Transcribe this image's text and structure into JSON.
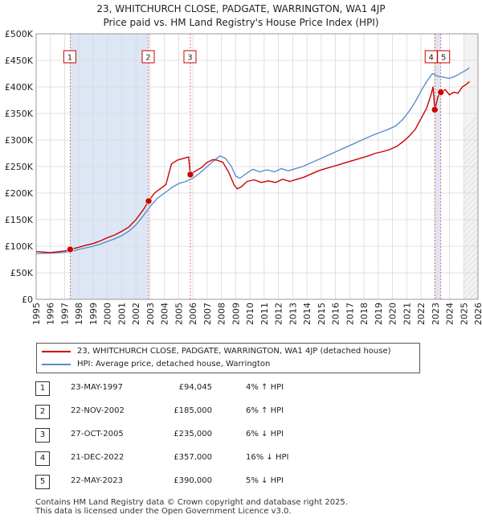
{
  "title_line1": "23, WHITCHURCH CLOSE, PADGATE, WARRINGTON, WA1 4JP",
  "title_line2": "Price paid vs. HM Land Registry's House Price Index (HPI)",
  "chart_data": {
    "type": "line",
    "title": "23, WHITCHURCH CLOSE, PADGATE, WARRINGTON, WA1 4JP — Price paid vs. HM Land Registry's House Price Index (HPI)",
    "xlabel": "",
    "ylabel": "",
    "xlim": [
      1995,
      2026
    ],
    "ylim": [
      0,
      500000
    ],
    "y_ticks": [
      0,
      50000,
      100000,
      150000,
      200000,
      250000,
      300000,
      350000,
      400000,
      450000,
      500000
    ],
    "y_tick_labels": [
      "£0",
      "£50K",
      "£100K",
      "£150K",
      "£200K",
      "£250K",
      "£300K",
      "£350K",
      "£400K",
      "£450K",
      "£500K"
    ],
    "x_ticks": [
      1995,
      1996,
      1997,
      1998,
      1999,
      2000,
      2001,
      2002,
      2003,
      2004,
      2005,
      2006,
      2007,
      2008,
      2009,
      2010,
      2011,
      2012,
      2013,
      2014,
      2015,
      2016,
      2017,
      2018,
      2019,
      2020,
      2021,
      2022,
      2023,
      2024,
      2025,
      2026
    ],
    "x_tick_labels": [
      "1995",
      "1996",
      "1997",
      "1998",
      "1999",
      "2000",
      "2001",
      "2002",
      "2003",
      "2004",
      "2005",
      "2006",
      "2007",
      "2008",
      "2009",
      "2010",
      "2011",
      "2012",
      "2013",
      "2014",
      "2015",
      "2016",
      "2017",
      "2018",
      "2019",
      "2020",
      "2021",
      "2022",
      "2023",
      "2024",
      "2025",
      "2026"
    ],
    "grid": true,
    "legend_position": "below",
    "highlight_periods": [
      [
        1997.39,
        2002.89
      ],
      [
        2022.97,
        2023.39
      ]
    ],
    "future_region_start": 2025.0,
    "series": [
      {
        "name": "23, WHITCHURCH CLOSE, PADGATE, WARRINGTON, WA1 4JP (detached house)",
        "color": "#cc0000",
        "x": [
          1995.0,
          1995.5,
          1996.0,
          1996.5,
          1997.0,
          1997.39,
          1998.0,
          1998.5,
          1999.0,
          1999.5,
          2000.0,
          2000.5,
          2001.0,
          2001.5,
          2002.0,
          2002.5,
          2002.89,
          2003.3,
          2003.7,
          2004.1,
          2004.5,
          2004.9,
          2005.3,
          2005.7,
          2005.82,
          2006.2,
          2006.6,
          2007.0,
          2007.4,
          2007.7,
          2008.1,
          2008.5,
          2008.9,
          2009.1,
          2009.4,
          2009.8,
          2010.3,
          2010.8,
          2011.3,
          2011.8,
          2012.3,
          2012.8,
          2013.3,
          2013.8,
          2014.3,
          2014.8,
          2015.3,
          2015.8,
          2016.3,
          2016.8,
          2017.3,
          2017.8,
          2018.3,
          2018.8,
          2019.3,
          2019.8,
          2020.3,
          2020.8,
          2021.2,
          2021.6,
          2022.0,
          2022.4,
          2022.7,
          2022.85,
          2022.97,
          2023.2,
          2023.39,
          2023.7,
          2024.0,
          2024.3,
          2024.6,
          2024.9,
          2025.2,
          2025.4
        ],
        "values": [
          90000,
          89000,
          88000,
          89500,
          91000,
          94045,
          98000,
          102000,
          105000,
          110000,
          116000,
          121000,
          128000,
          136000,
          150000,
          168000,
          185000,
          200000,
          208000,
          216000,
          255000,
          262000,
          265000,
          268000,
          235000,
          242000,
          248000,
          258000,
          263000,
          262000,
          258000,
          240000,
          215000,
          208000,
          212000,
          222000,
          225000,
          220000,
          223000,
          220000,
          226000,
          222000,
          226000,
          230000,
          236000,
          242000,
          246000,
          250000,
          254000,
          258000,
          262000,
          266000,
          270000,
          275000,
          278000,
          282000,
          288000,
          298000,
          308000,
          320000,
          340000,
          360000,
          385000,
          400000,
          357000,
          382000,
          390000,
          395000,
          385000,
          390000,
          388000,
          400000,
          405000,
          410000
        ]
      },
      {
        "name": "HPI: Average price, detached house, Warrington",
        "color": "#5b8fc9",
        "x": [
          1995.0,
          1995.5,
          1996.0,
          1996.5,
          1997.0,
          1997.5,
          1998.0,
          1998.5,
          1999.0,
          1999.5,
          2000.0,
          2000.5,
          2001.0,
          2001.5,
          2002.0,
          2002.5,
          2003.0,
          2003.5,
          2004.0,
          2004.5,
          2005.0,
          2005.5,
          2006.0,
          2006.5,
          2007.0,
          2007.5,
          2007.9,
          2008.3,
          2008.7,
          2009.0,
          2009.3,
          2009.7,
          2010.2,
          2010.7,
          2011.2,
          2011.7,
          2012.2,
          2012.7,
          2013.2,
          2013.7,
          2014.2,
          2014.7,
          2015.2,
          2015.7,
          2016.2,
          2016.7,
          2017.2,
          2017.7,
          2018.2,
          2018.7,
          2019.2,
          2019.7,
          2020.2,
          2020.7,
          2021.2,
          2021.6,
          2022.0,
          2022.4,
          2022.8,
          2023.2,
          2023.6,
          2024.0,
          2024.4,
          2024.8,
          2025.2,
          2025.4
        ],
        "values": [
          86000,
          86500,
          87000,
          87500,
          88500,
          90500,
          94000,
          97000,
          100000,
          104000,
          109000,
          114000,
          120000,
          128000,
          140000,
          157000,
          175000,
          190000,
          200000,
          210000,
          218000,
          222000,
          228000,
          238000,
          250000,
          262000,
          270000,
          265000,
          250000,
          232000,
          228000,
          236000,
          245000,
          240000,
          244000,
          240000,
          246000,
          242000,
          246000,
          250000,
          256000,
          262000,
          268000,
          274000,
          280000,
          286000,
          292000,
          298000,
          304000,
          310000,
          315000,
          320000,
          326000,
          338000,
          355000,
          372000,
          392000,
          410000,
          425000,
          420000,
          418000,
          416000,
          420000,
          426000,
          432000,
          436000
        ]
      }
    ],
    "sales": [
      {
        "num": 1,
        "x": 1997.39,
        "value": 94045
      },
      {
        "num": 2,
        "x": 2002.89,
        "value": 185000
      },
      {
        "num": 3,
        "x": 2005.82,
        "value": 235000
      },
      {
        "num": 4,
        "x": 2022.97,
        "value": 357000
      },
      {
        "num": 5,
        "x": 2023.39,
        "value": 390000
      }
    ]
  },
  "legend": {
    "property_label": "23, WHITCHURCH CLOSE, PADGATE, WARRINGTON, WA1 4JP (detached house)",
    "hpi_label": "HPI: Average price, detached house, Warrington"
  },
  "transactions": [
    {
      "num": "1",
      "date": "23-MAY-1997",
      "price": "£94,045",
      "hpi": "4% ↑ HPI"
    },
    {
      "num": "2",
      "date": "22-NOV-2002",
      "price": "£185,000",
      "hpi": "6% ↑ HPI"
    },
    {
      "num": "3",
      "date": "27-OCT-2005",
      "price": "£235,000",
      "hpi": "6% ↓ HPI"
    },
    {
      "num": "4",
      "date": "21-DEC-2022",
      "price": "£357,000",
      "hpi": "16% ↓ HPI"
    },
    {
      "num": "5",
      "date": "22-MAY-2023",
      "price": "£390,000",
      "hpi": "5% ↓ HPI"
    }
  ],
  "footer": {
    "line1": "Contains HM Land Registry data © Crown copyright and database right 2025.",
    "line2": "This data is licensed under the Open Government Licence v3.0."
  }
}
